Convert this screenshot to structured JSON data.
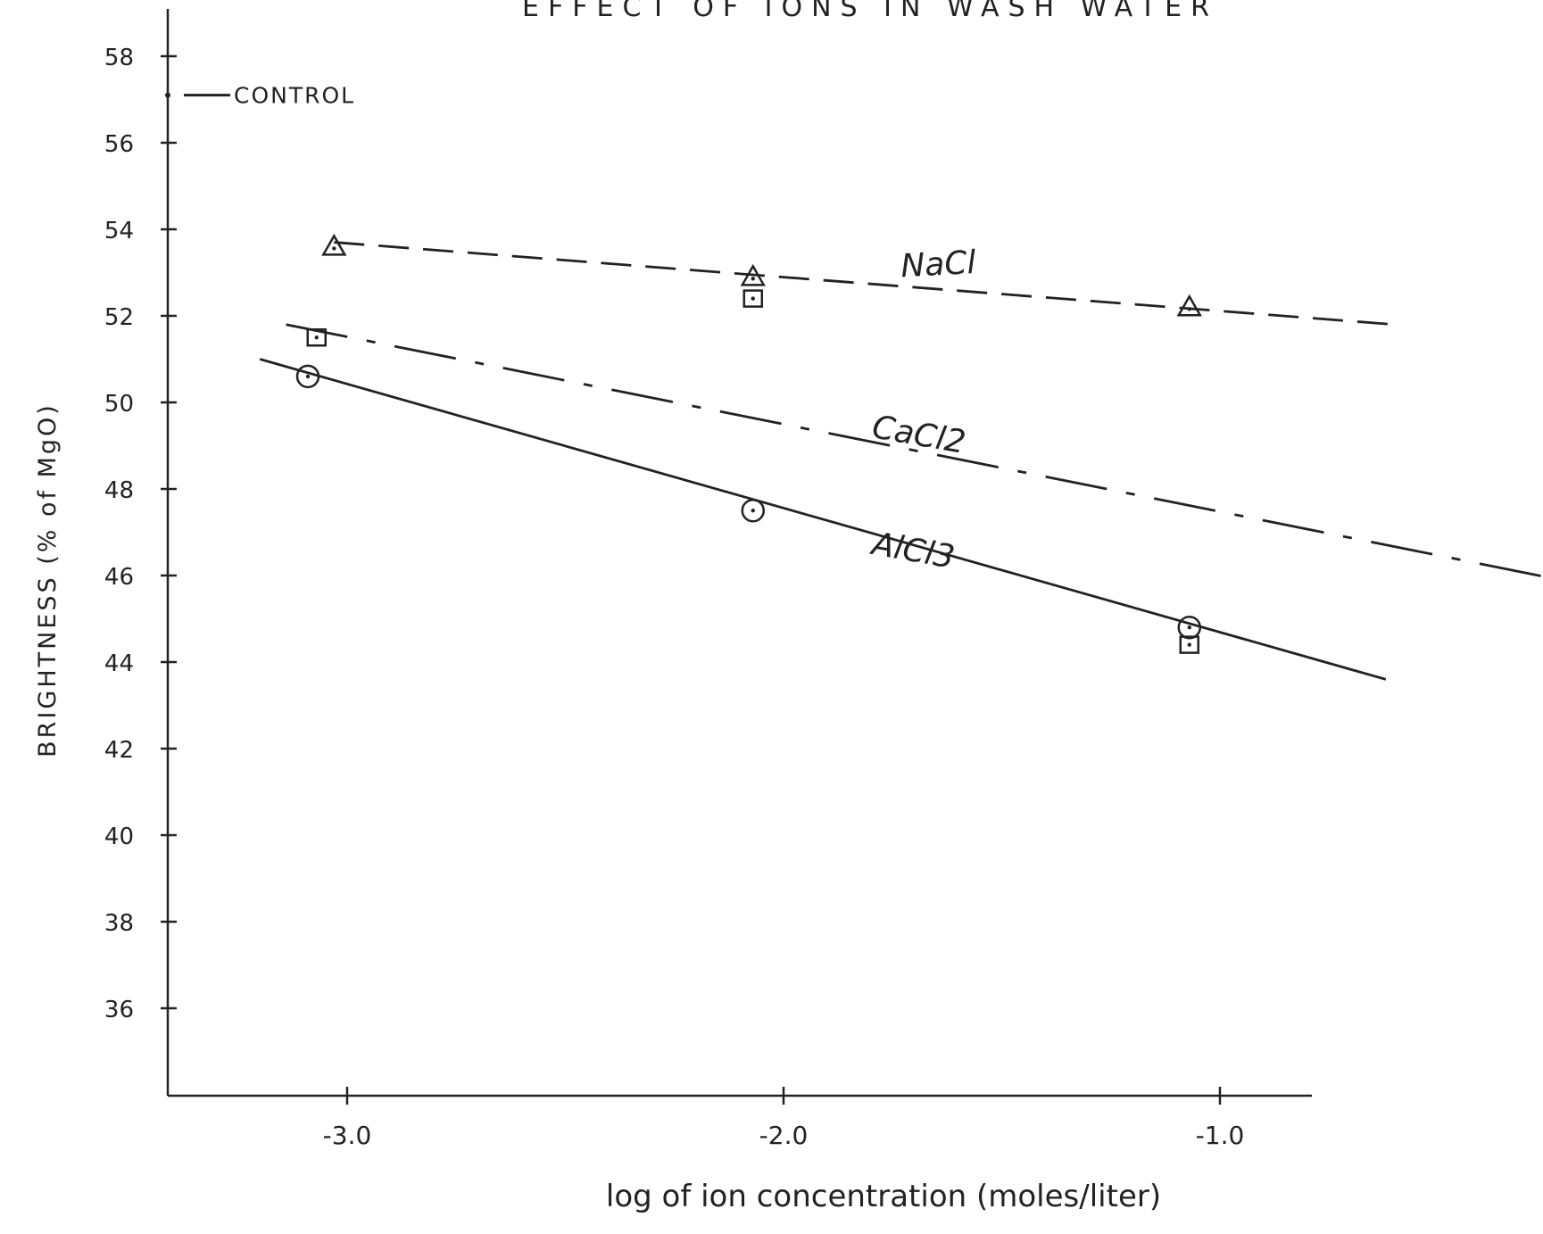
{
  "chart_data": {
    "type": "line",
    "title": "EFFECT OF IONS IN WASH WATER",
    "xlabel": "log of ion concentration (moles/liter)",
    "ylabel": "BRIGHTNESS (% of MgO)",
    "xlim": [
      -3.4,
      -0.8
    ],
    "ylim": [
      34,
      59
    ],
    "xticks": [
      -3.0,
      -2.0,
      -1.0
    ],
    "xtick_labels": [
      "-3.0",
      "-2.0",
      "-1.0"
    ],
    "yticks": [
      36,
      38,
      40,
      42,
      44,
      46,
      48,
      50,
      52,
      54,
      56,
      58
    ],
    "ytick_labels": [
      "36",
      "38",
      "40",
      "42",
      "44",
      "46",
      "48",
      "50",
      "52",
      "54",
      "56",
      "58"
    ],
    "grid": false,
    "control": {
      "label": "CONTROL",
      "value": 57.1
    },
    "series": [
      {
        "name": "NaCl",
        "marker": "triangle",
        "line_style": "dashed",
        "points": [
          {
            "x": -3.03,
            "y": 53.6
          },
          {
            "x": -2.07,
            "y": 52.9
          },
          {
            "x": -1.07,
            "y": 52.2
          }
        ],
        "fit": {
          "x": [
            -3.03,
            -0.6
          ],
          "y": [
            53.7,
            51.8
          ]
        }
      },
      {
        "name": "CaCl2",
        "marker": "square",
        "line_style": "dash-dot",
        "points": [
          {
            "x": -3.07,
            "y": 51.5
          },
          {
            "x": -2.07,
            "y": 52.4
          },
          {
            "x": -1.07,
            "y": 44.4
          }
        ],
        "fit": {
          "x": [
            -3.14,
            -0.22
          ],
          "y": [
            51.8,
            45.9
          ]
        }
      },
      {
        "name": "AlCl3",
        "marker": "circle",
        "line_style": "solid",
        "points": [
          {
            "x": -3.09,
            "y": 50.6
          },
          {
            "x": -2.07,
            "y": 47.5
          },
          {
            "x": -1.07,
            "y": 44.8
          }
        ],
        "fit": {
          "x": [
            -3.2,
            -0.62
          ],
          "y": [
            51.0,
            43.6
          ]
        }
      }
    ],
    "colors": {
      "ink": "#222222"
    }
  }
}
